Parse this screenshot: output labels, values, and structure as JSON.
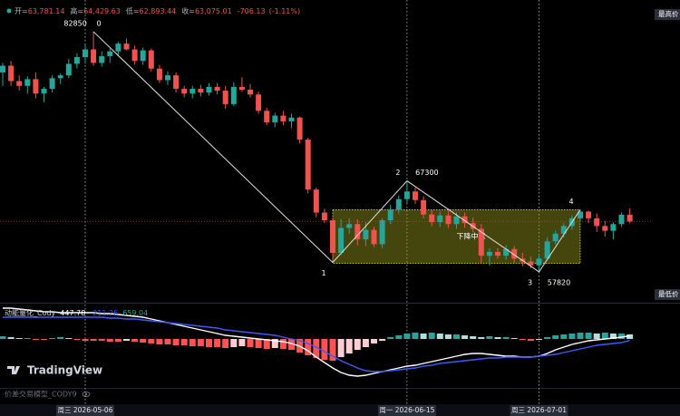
{
  "chart_data": {
    "type": "candlestick",
    "header": {
      "labels": [
        "开=",
        "高=",
        "低=",
        "收="
      ],
      "values": [
        {
          "value": 63781.14,
          "label": "63,781.14"
        },
        {
          "value": 64429.63,
          "label": "64,429.63"
        },
        {
          "value": 62893.44,
          "label": "62,893.44"
        },
        {
          "value": 63075.01,
          "label": "63,075.01"
        }
      ],
      "change": -706.13,
      "change_pct": {
        "value": -1.11,
        "label": "(-1.11%)"
      }
    },
    "categories": [
      null,
      null,
      null,
      null,
      null,
      null,
      null,
      null,
      null,
      null,
      "周三 2026-05-06",
      null,
      null,
      null,
      null,
      null,
      null,
      null,
      null,
      null,
      null,
      null,
      null,
      null,
      null,
      null,
      null,
      null,
      null,
      null,
      null,
      null,
      null,
      null,
      null,
      null,
      null,
      null,
      null,
      null,
      null,
      null,
      null,
      null,
      null,
      null,
      null,
      null,
      null,
      "周一 2026-06-15",
      null,
      null,
      null,
      null,
      null,
      null,
      null,
      null,
      null,
      null,
      null,
      null,
      null,
      null,
      null,
      "周三 2026-07-01",
      null,
      null,
      null,
      null,
      null,
      null,
      null,
      null,
      null,
      null,
      null
    ],
    "open": [
      78600,
      79300,
      77700,
      77200,
      77900,
      76400,
      76900,
      78000,
      78300,
      79500,
      80200,
      81000,
      79600,
      80300,
      80800,
      81600,
      81000,
      79800,
      80900,
      79000,
      77800,
      78300,
      76900,
      76400,
      76900,
      76500,
      77100,
      76700,
      75300,
      77100,
      76800,
      76300,
      74600,
      73400,
      74100,
      73500,
      73900,
      71600,
      66400,
      64000,
      63200,
      59800,
      62400,
      62800,
      61200,
      62200,
      60700,
      63200,
      64300,
      65400,
      66200,
      65300,
      63800,
      63000,
      63700,
      62800,
      63600,
      62900,
      62300,
      59500,
      59900,
      59500,
      60200,
      59200,
      58900,
      58500,
      59200,
      61000,
      61800,
      62600,
      63400,
      64100,
      63400,
      62600,
      62100,
      62800,
      63781.14
    ],
    "high": [
      79600,
      79800,
      78300,
      78200,
      78600,
      77100,
      78300,
      78500,
      80000,
      80600,
      81500,
      82850,
      80800,
      81100,
      81800,
      82100,
      81400,
      81200,
      81100,
      79400,
      78700,
      78600,
      77200,
      77200,
      77300,
      77500,
      77500,
      77200,
      77600,
      78100,
      77400,
      76600,
      74900,
      74400,
      74600,
      74300,
      74000,
      71800,
      66600,
      64400,
      63500,
      63300,
      63400,
      63300,
      63000,
      62500,
      63400,
      64800,
      65800,
      67300,
      66600,
      65700,
      64300,
      64100,
      64200,
      64000,
      64000,
      63500,
      62800,
      60300,
      60300,
      60600,
      60500,
      59800,
      59400,
      59500,
      61400,
      62100,
      62900,
      63700,
      64300,
      64200,
      63900,
      63100,
      63000,
      64000,
      64429.63
    ],
    "low": [
      77200,
      77200,
      76700,
      76400,
      75900,
      75500,
      76500,
      77400,
      78000,
      79000,
      79500,
      79300,
      79200,
      79600,
      80400,
      80900,
      79400,
      79400,
      78700,
      77500,
      77300,
      76500,
      76000,
      75900,
      76100,
      76200,
      76300,
      74800,
      75100,
      76600,
      76000,
      74300,
      73100,
      72900,
      73100,
      72800,
      71200,
      66000,
      63500,
      62900,
      58800,
      59600,
      61800,
      60600,
      60500,
      60400,
      60300,
      62800,
      63900,
      65000,
      64900,
      63400,
      62600,
      62500,
      62400,
      62300,
      62400,
      61900,
      58700,
      58500,
      59200,
      59100,
      58800,
      58400,
      58200,
      57820,
      59000,
      60700,
      61400,
      62200,
      63000,
      62900,
      62000,
      61500,
      61200,
      62500,
      62893.44
    ],
    "close": [
      79300,
      77700,
      77200,
      77900,
      76400,
      76900,
      78000,
      78300,
      79500,
      80200,
      81000,
      79600,
      80300,
      80800,
      81600,
      81000,
      79800,
      80900,
      79000,
      77800,
      78300,
      76900,
      76400,
      76900,
      76500,
      77100,
      76700,
      75300,
      77100,
      76800,
      76300,
      74600,
      73400,
      74100,
      73500,
      73900,
      71600,
      66400,
      64000,
      63200,
      59800,
      62400,
      62800,
      61200,
      62200,
      60700,
      63200,
      64300,
      65400,
      66200,
      65300,
      63800,
      63000,
      63700,
      62800,
      63600,
      62900,
      62300,
      59500,
      59900,
      59500,
      60200,
      59200,
      58900,
      58500,
      59200,
      61000,
      61800,
      62600,
      63400,
      64100,
      63400,
      62600,
      62100,
      62800,
      63781.14,
      63075.01
    ],
    "up_color": "#26a69a",
    "down_color": "#ef5350",
    "ylim": [
      54700,
      86150
    ],
    "last_price_line": true,
    "zigzag": {
      "color": "#e0e0e0",
      "points": [
        {
          "label": "0",
          "index": 11,
          "value": 82850,
          "labeled": true
        },
        {
          "label": "1",
          "index": 40,
          "value": 58800,
          "labeled": false
        },
        {
          "label": "2",
          "index": 49,
          "value": 67300,
          "labeled": true
        },
        {
          "label": "3",
          "index": 65,
          "value": 57820,
          "labeled": true
        },
        {
          "label": "4",
          "index": 70,
          "value": 64300,
          "labeled": false
        }
      ]
    },
    "zone": {
      "label": "下降中枢",
      "start": 40,
      "end": 70,
      "top": 64300,
      "bottom": 58700,
      "color": "#9a9a1e"
    },
    "right_labels": [
      "最高价",
      "最低价"
    ],
    "indicator": {
      "type": "macd",
      "name": "动能量化_Cody",
      "ylim": [
        -6630,
        4680
      ],
      "series": [
        {
          "color": "#ffffff",
          "values": [
            4420,
            4420,
            4290,
            4160,
            4030,
            3900,
            3900,
            3770,
            3770,
            3770,
            3770,
            3770,
            3640,
            3640,
            3510,
            3380,
            3250,
            3120,
            2860,
            2600,
            2340,
            2080,
            1820,
            1560,
            1300,
            1040,
            780,
            520,
            390,
            260,
            130,
            0,
            -130,
            -260,
            -390,
            -650,
            -1040,
            -1690,
            -2600,
            -3380,
            -4160,
            -4810,
            -5200,
            -5330,
            -5200,
            -4940,
            -4680,
            -4420,
            -4160,
            -3900,
            -3770,
            -3510,
            -3250,
            -2990,
            -2730,
            -2470,
            -2210,
            -2080,
            -2080,
            -2210,
            -2340,
            -2470,
            -2470,
            -2600,
            -2600,
            -2470,
            -2080,
            -1560,
            -1170,
            -780,
            -520,
            -260,
            -130,
            0,
            130,
            260,
            447.78
          ]
        },
        {
          "color": "#3d5afe",
          "values": [
            3120,
            3120,
            3120,
            3120,
            3120,
            3120,
            3120,
            3120,
            3120,
            3120,
            3120,
            3120,
            3120,
            2990,
            2990,
            2860,
            2860,
            2730,
            2600,
            2470,
            2340,
            2210,
            2080,
            1950,
            1820,
            1690,
            1560,
            1300,
            1170,
            1040,
            910,
            780,
            650,
            520,
            260,
            0,
            -260,
            -650,
            -1170,
            -1820,
            -2470,
            -3120,
            -3640,
            -4160,
            -4550,
            -4680,
            -4680,
            -4550,
            -4420,
            -4290,
            -4160,
            -3900,
            -3770,
            -3510,
            -3380,
            -3250,
            -3120,
            -2990,
            -2860,
            -2730,
            -2730,
            -2600,
            -2600,
            -2600,
            -2600,
            -2470,
            -2340,
            -2210,
            -1950,
            -1690,
            -1430,
            -1170,
            -910,
            -780,
            -650,
            -520,
            -211.26
          ]
        }
      ],
      "histogram": {
        "values": [
          390,
          260,
          130,
          130,
          -130,
          -130,
          130,
          260,
          130,
          -130,
          -260,
          -260,
          -260,
          -390,
          -390,
          -260,
          -390,
          -520,
          -650,
          -780,
          -780,
          -910,
          -910,
          -1040,
          -1040,
          -1170,
          -1170,
          -1300,
          -1170,
          -1040,
          -1170,
          -1300,
          -1430,
          -1300,
          -1430,
          -1560,
          -1950,
          -2340,
          -2730,
          -2990,
          -3120,
          -2600,
          -2080,
          -1560,
          -1170,
          -650,
          -260,
          260,
          520,
          780,
          910,
          780,
          910,
          780,
          650,
          650,
          520,
          390,
          260,
          390,
          260,
          260,
          130,
          -130,
          -260,
          -130,
          260,
          520,
          650,
          780,
          910,
          910,
          780,
          910,
          780,
          780,
          659.04
        ],
        "colors": {
          "up_grow": "#26a69a",
          "up_fall": "#b2dfdb",
          "down_grow": "#ff5252",
          "down_fall": "#ffcdd2"
        }
      }
    }
  },
  "branding": {
    "logo": "TradingView",
    "script": "价差交易模型_CODY9"
  }
}
